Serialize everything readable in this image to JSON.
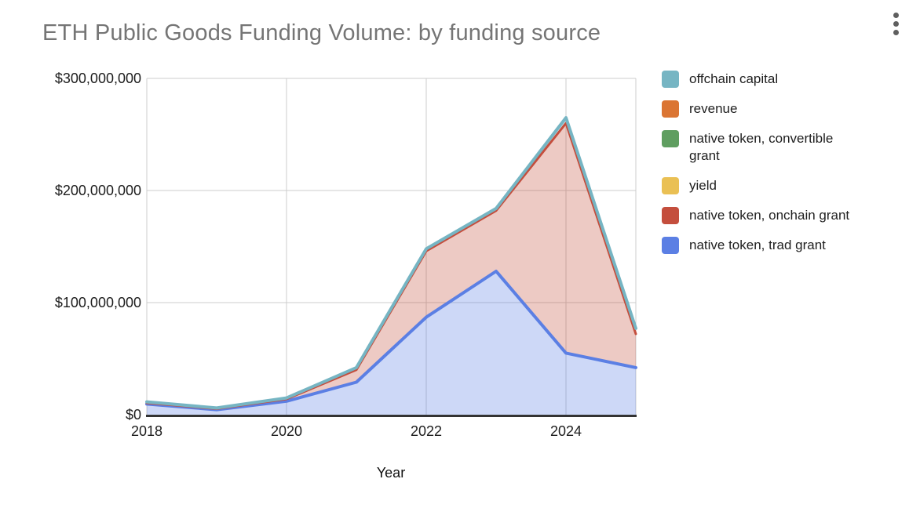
{
  "title": "ETH Public Goods Funding Volume: by funding source",
  "menu": {
    "icon": "kebab-menu-icon"
  },
  "chart_data": {
    "type": "area",
    "stacked": true,
    "title": "ETH Public Goods Funding Volume: by funding source",
    "xlabel": "Year",
    "ylabel": "",
    "x": [
      2018,
      2019,
      2020,
      2021,
      2022,
      2023,
      2024,
      2025
    ],
    "x_tick_years": [
      2018,
      2020,
      2022,
      2024
    ],
    "x_tick_labels": [
      "2018",
      "2020",
      "2022",
      "2024"
    ],
    "y_tick_values": [
      0,
      100000000,
      200000000,
      300000000
    ],
    "y_tick_labels": [
      "$0",
      "$100,000,000",
      "$200,000,000",
      "$300,000,000"
    ],
    "ylim": [
      0,
      300000000
    ],
    "grid": true,
    "legend_position": "right",
    "series": [
      {
        "name": "native token, trad grant",
        "legend_label": "native token, trad grant",
        "color": "#5B7FE4",
        "line_width": 4,
        "values": [
          9500000,
          4500000,
          12000000,
          29000000,
          87000000,
          128000000,
          55000000,
          42000000
        ]
      },
      {
        "name": "native token, onchain grant",
        "legend_label": "native token, onchain grant",
        "color": "#C44E3D",
        "line_width": 3,
        "values": [
          1000000,
          800000,
          2000000,
          11000000,
          59000000,
          54000000,
          205000000,
          30000000
        ]
      },
      {
        "name": "yield",
        "legend_label": "yield",
        "color": "#EAC054",
        "line_width": 3,
        "values": [
          0,
          0,
          0,
          0,
          0,
          0,
          0,
          0
        ]
      },
      {
        "name": "native token, convertible grant",
        "legend_label": "native token, convertible\ngrant",
        "color": "#5F9E60",
        "line_width": 3,
        "values": [
          0,
          0,
          0,
          0,
          0,
          0,
          0,
          0
        ]
      },
      {
        "name": "revenue",
        "legend_label": "revenue",
        "color": "#DB7533",
        "line_width": 3,
        "values": [
          0,
          0,
          0,
          0,
          0,
          0,
          0,
          0
        ]
      },
      {
        "name": "offchain capital",
        "legend_label": "offchain capital",
        "color": "#76B5C3",
        "line_width": 4,
        "values": [
          1000000,
          700000,
          1000000,
          2000000,
          2000000,
          2000000,
          5000000,
          5000000
        ]
      }
    ],
    "fill_opacity": 0.3,
    "gridline_color": "#cccccc",
    "baseline_color": "#333333"
  }
}
